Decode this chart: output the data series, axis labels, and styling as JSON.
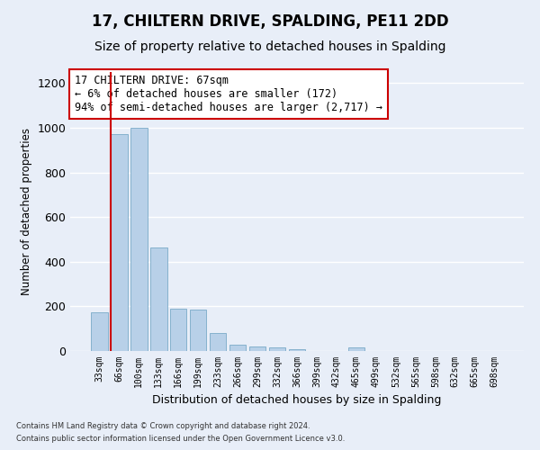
{
  "title": "17, CHILTERN DRIVE, SPALDING, PE11 2DD",
  "subtitle": "Size of property relative to detached houses in Spalding",
  "xlabel": "Distribution of detached houses by size in Spalding",
  "ylabel": "Number of detached properties",
  "categories": [
    "33sqm",
    "66sqm",
    "100sqm",
    "133sqm",
    "166sqm",
    "199sqm",
    "233sqm",
    "266sqm",
    "299sqm",
    "332sqm",
    "366sqm",
    "399sqm",
    "432sqm",
    "465sqm",
    "499sqm",
    "532sqm",
    "565sqm",
    "598sqm",
    "632sqm",
    "665sqm",
    "698sqm"
  ],
  "values": [
    172,
    970,
    1000,
    465,
    190,
    185,
    80,
    28,
    22,
    18,
    10,
    0,
    0,
    15,
    0,
    0,
    0,
    0,
    0,
    0,
    0
  ],
  "bar_color": "#b8d0e8",
  "bar_edge_color": "#7aaac8",
  "highlight_color": "#cc0000",
  "highlight_bar_index": 1,
  "annotation_text": "17 CHILTERN DRIVE: 67sqm\n← 6% of detached houses are smaller (172)\n94% of semi-detached houses are larger (2,717) →",
  "annotation_box_color": "#ffffff",
  "annotation_box_edge": "#cc0000",
  "ylim": [
    0,
    1250
  ],
  "yticks": [
    0,
    200,
    400,
    600,
    800,
    1000,
    1200
  ],
  "footnote1": "Contains HM Land Registry data © Crown copyright and database right 2024.",
  "footnote2": "Contains public sector information licensed under the Open Government Licence v3.0.",
  "bg_color": "#e8eef8",
  "grid_color": "#ffffff",
  "title_fontsize": 12,
  "subtitle_fontsize": 10
}
